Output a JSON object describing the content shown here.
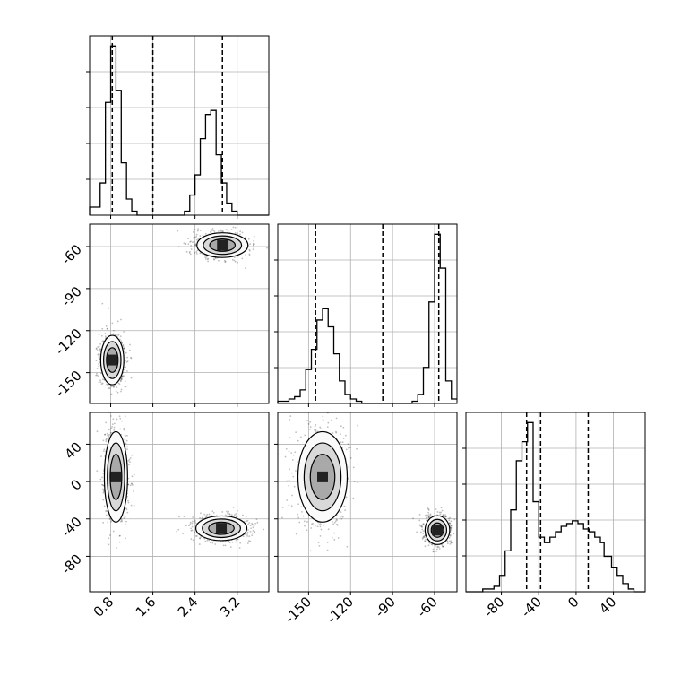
{
  "chart_data": {
    "type": "corner",
    "params": [
      {
        "ticks": [
          0.8,
          1.6,
          2.4,
          3.2
        ],
        "range": [
          0.4,
          3.8
        ]
      },
      {
        "ticks": [
          -150,
          -120,
          -90,
          -60
        ],
        "range": [
          -172,
          -44
        ]
      },
      {
        "ticks": [
          -80,
          -40,
          0,
          40
        ],
        "range": [
          -118,
          74
        ]
      }
    ],
    "quantile_lines": [
      [
        0.83,
        1.6,
        2.92
      ],
      [
        -145,
        -97,
        -57
      ],
      [
        -53,
        -38,
        13
      ]
    ],
    "histograms": [
      {
        "diagonal": 0,
        "type": "histogram",
        "bin_edges": [
          0.4,
          0.5,
          0.6,
          0.7,
          0.8,
          0.9,
          1.0,
          1.1,
          1.2,
          1.3,
          1.4,
          1.5,
          1.6,
          1.7,
          1.8,
          1.9,
          2.0,
          2.1,
          2.2,
          2.3,
          2.4,
          2.5,
          2.6,
          2.7,
          2.8,
          2.9,
          3.0,
          3.1,
          3.2,
          3.3,
          3.4,
          3.5,
          3.6,
          3.7,
          3.8
        ],
        "counts": [
          2,
          2,
          8,
          28,
          42,
          31,
          13,
          4,
          1,
          0,
          0,
          0,
          0,
          0,
          0,
          0,
          0,
          0,
          1,
          5,
          10,
          19,
          25,
          26,
          15,
          8,
          3,
          1,
          0,
          0,
          0,
          0,
          0,
          0
        ]
      },
      {
        "diagonal": 1,
        "type": "histogram",
        "bin_edges": [
          -172,
          -168,
          -164,
          -160,
          -156,
          -152,
          -148,
          -144,
          -140,
          -136,
          -132,
          -128,
          -124,
          -120,
          -116,
          -112,
          -108,
          -104,
          -100,
          -96,
          -92,
          -88,
          -84,
          -80,
          -76,
          -72,
          -68,
          -64,
          -60,
          -56,
          -52,
          -48,
          -44
        ],
        "counts": [
          1,
          1,
          2,
          3,
          6,
          15,
          24,
          37,
          42,
          34,
          22,
          10,
          4,
          2,
          1,
          0,
          0,
          0,
          0,
          0,
          0,
          0,
          0,
          0,
          1,
          4,
          16,
          45,
          75,
          60,
          10,
          2
        ]
      },
      {
        "diagonal": 2,
        "type": "histogram",
        "bin_edges": [
          -118,
          -112,
          -106,
          -100,
          -94,
          -88,
          -82,
          -76,
          -70,
          -64,
          -58,
          -52,
          -46,
          -40,
          -34,
          -28,
          -22,
          -16,
          -10,
          -4,
          2,
          8,
          14,
          20,
          26,
          30,
          38,
          44,
          50,
          56,
          62,
          68,
          74
        ],
        "counts": [
          0,
          0,
          0,
          1,
          1,
          2,
          6,
          15,
          30,
          48,
          55,
          62,
          33,
          20,
          18,
          20,
          22,
          24,
          25,
          26,
          25,
          23,
          22,
          20,
          18,
          13,
          9,
          6,
          3,
          1,
          0,
          0
        ]
      }
    ],
    "scatter_panels": [
      {
        "type": "scatter_density",
        "x_param": 0,
        "y_param": 1,
        "clusters": [
          {
            "x": 0.83,
            "y": -141,
            "sx": 0.1,
            "sy": 8
          },
          {
            "x": 2.92,
            "y": -59,
            "sx": 0.22,
            "sy": 4
          }
        ]
      },
      {
        "type": "scatter_density",
        "x_param": 0,
        "y_param": 2,
        "clusters": [
          {
            "x": 0.9,
            "y": 5,
            "sx": 0.1,
            "sy": 22
          },
          {
            "x": 2.9,
            "y": -50,
            "sx": 0.22,
            "sy": 6
          }
        ]
      },
      {
        "type": "scatter_density",
        "x_param": 1,
        "y_param": 2,
        "clusters": [
          {
            "x": -140,
            "y": 5,
            "sx": 8,
            "sy": 22
          },
          {
            "x": -58,
            "y": -52,
            "sx": 4,
            "sy": 7
          }
        ]
      }
    ],
    "grid": true,
    "axis_labels": [],
    "legend": "none"
  }
}
